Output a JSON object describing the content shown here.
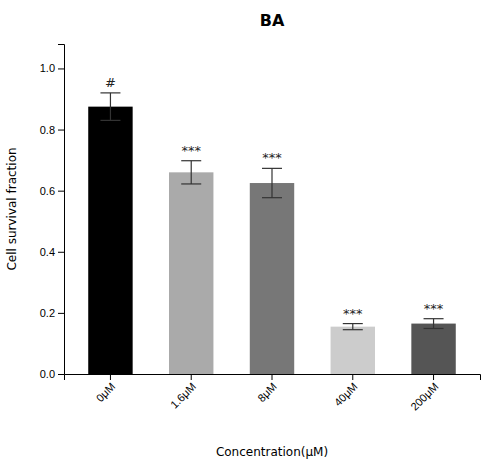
{
  "chart_data": {
    "type": "bar",
    "title": "BA",
    "xlabel": "Concentration(μM)",
    "ylabel": "Cell survival fraction",
    "categories": [
      "0μM",
      "1.6μM",
      "8μM",
      "40μM",
      "200μM"
    ],
    "values": [
      0.875,
      0.66,
      0.625,
      0.155,
      0.165
    ],
    "errors": [
      0.045,
      0.038,
      0.048,
      0.01,
      0.016
    ],
    "colors": [
      "#000000",
      "#aaaaaa",
      "#777777",
      "#cccccc",
      "#555555"
    ],
    "annotations": [
      "#",
      "***",
      "***",
      "***",
      "***"
    ],
    "ylim": [
      0.0,
      1.08
    ],
    "yticks": [
      {
        "value": 0.0,
        "label": "0.0"
      },
      0.2,
      0.4,
      0.6,
      0.8,
      {
        "value": 1.0,
        "label": "1.0"
      }
    ],
    "grid": false
  }
}
